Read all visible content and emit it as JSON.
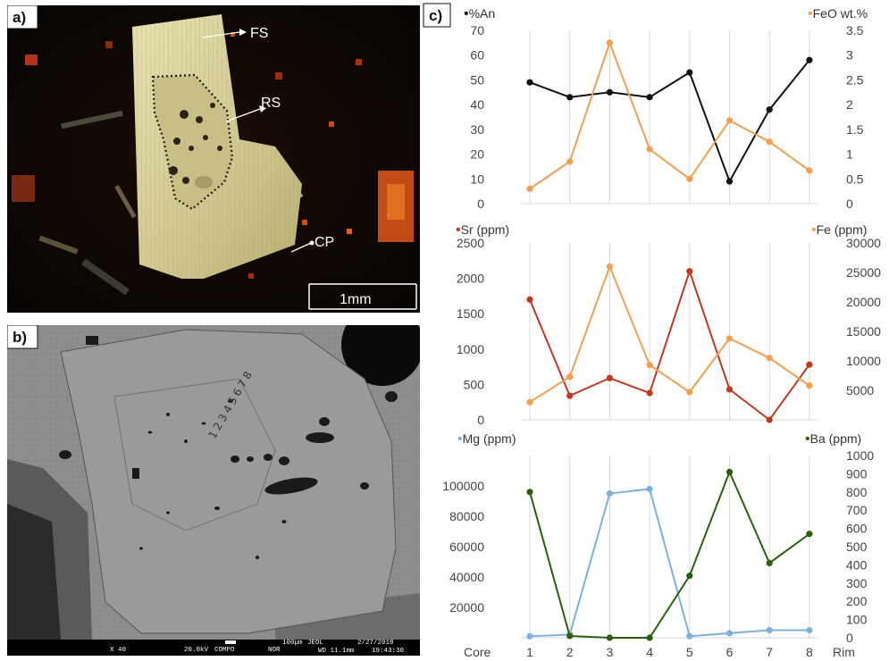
{
  "panel_labels": {
    "a": "a)",
    "b": "b)",
    "c": "c)"
  },
  "photo_a": {
    "labels": {
      "fs": "FS",
      "rs": "RS",
      "cp": "CP"
    },
    "scale_bar": "1mm"
  },
  "photo_b": {
    "zone_numbers": [
      "1",
      "2",
      "3",
      "4",
      "5",
      "6",
      "7",
      "8"
    ],
    "footer": {
      "magnification": "X 40",
      "voltage": "20.0kV",
      "mode": "COMPO",
      "nor": "NOR",
      "scale": "100µm",
      "maker": "JEOL",
      "date": "2/27/2018",
      "wd": "WD 11.1mm",
      "time": "19:43:30"
    }
  },
  "colors": {
    "an": "#111111",
    "feo": "#f0a050",
    "sr": "#c0391e",
    "fe": "#f0a050",
    "mg": "#7eb2dd",
    "ba": "#2d5e10"
  },
  "chart_data": [
    {
      "type": "line",
      "x": [
        "1",
        "2",
        "3",
        "4",
        "5",
        "6",
        "7",
        "8"
      ],
      "ylim": [
        0,
        70
      ],
      "y2lim": [
        0,
        3.5
      ],
      "y_ticks": [
        "0",
        "10",
        "20",
        "30",
        "40",
        "50",
        "60",
        "70"
      ],
      "y2_ticks": [
        "0",
        "0.5",
        "1",
        "1.5",
        "2",
        "2.5",
        "3",
        "3.5"
      ],
      "series": [
        {
          "name": "%An",
          "axis": "left",
          "values": [
            49,
            43,
            45,
            43,
            53,
            9,
            38,
            58
          ]
        },
        {
          "name": "FeO wt.%",
          "axis": "right",
          "values": [
            0.3,
            0.85,
            3.25,
            1.1,
            0.5,
            1.68,
            1.25,
            0.67
          ]
        }
      ]
    },
    {
      "type": "line",
      "x": [
        "1",
        "2",
        "3",
        "4",
        "5",
        "6",
        "7",
        "8"
      ],
      "ylim": [
        0,
        2500
      ],
      "y2lim": [
        0,
        30000
      ],
      "y_ticks": [
        "0",
        "500",
        "1000",
        "1500",
        "2000",
        "2500"
      ],
      "y2_ticks": [
        "5000",
        "10000",
        "15000",
        "20000",
        "25000",
        "30000"
      ],
      "series": [
        {
          "name": "Sr (ppm)",
          "axis": "left",
          "values": [
            1700,
            340,
            590,
            380,
            2100,
            430,
            0,
            780
          ]
        },
        {
          "name": "Fe (ppm)",
          "axis": "right",
          "values": [
            3000,
            7300,
            26000,
            9300,
            4700,
            13800,
            10500,
            5800
          ]
        }
      ]
    },
    {
      "type": "line",
      "x": [
        "1",
        "2",
        "3",
        "4",
        "5",
        "6",
        "7",
        "8"
      ],
      "x_tick_labels": [
        "1",
        "2",
        "3",
        "4",
        "5",
        "6",
        "7",
        "8"
      ],
      "x_end_labels": {
        "left": "Core",
        "right": "Rim"
      },
      "ylim": [
        0,
        120000
      ],
      "y2lim": [
        0,
        1000
      ],
      "y_ticks": [
        "20000",
        "40000",
        "60000",
        "80000",
        "100000"
      ],
      "y2_ticks": [
        "0",
        "100",
        "200",
        "300",
        "400",
        "500",
        "600",
        "700",
        "800",
        "900",
        "1000"
      ],
      "series": [
        {
          "name": "Mg (ppm)",
          "axis": "left",
          "values": [
            1000,
            2000,
            95000,
            98000,
            1000,
            3000,
            5000,
            5000
          ]
        },
        {
          "name": "Ba (ppm)",
          "axis": "right",
          "values": [
            800,
            10,
            0,
            0,
            340,
            910,
            410,
            570
          ]
        }
      ]
    }
  ]
}
